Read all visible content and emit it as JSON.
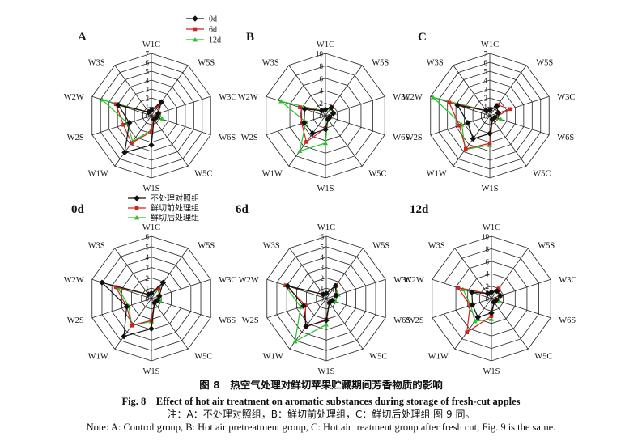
{
  "colors": {
    "s0": "#111111",
    "s1": "#d42020",
    "s2": "#27c227",
    "grid": "#222222"
  },
  "legend_top": {
    "entries": [
      "0d",
      "6d",
      "12d"
    ]
  },
  "legend_mid": {
    "entries": [
      "不处理对照组",
      "鲜切前处理组",
      "鲜切后处理组"
    ]
  },
  "captions": {
    "zh_title": "图 8　热空气处理对鲜切苹果贮藏期间芳香物质的影响",
    "en_title": "Fig. 8　Effect of hot air treatment on aromatic substances during storage of fresh-cut apples",
    "zh_note": "注：A：不处理对照组，B：鲜切前处理组，C：鲜切后处理组  图 9 同。",
    "en_note": "Note: A: Control group, B: Hot air pretreatment group, C: Hot air treatment group after fresh cut, Fig. 9 is the same."
  },
  "chart_data": [
    {
      "type": "radar",
      "panel_label": "A",
      "axes": [
        "W1C",
        "W5S",
        "W3C",
        "W6S",
        "W5C",
        "W1S",
        "W1W",
        "W2S",
        "W2W",
        "W3S"
      ],
      "rlim": [
        0,
        7
      ],
      "ticks": [
        "0",
        "1",
        "2",
        "3",
        "4",
        "5",
        "6",
        "7"
      ],
      "series_legend": "legend_top",
      "series": [
        {
          "values": [
            0.6,
            1.9,
            0.8,
            0.6,
            0.5,
            3.3,
            5.1,
            2.6,
            3.9,
            0.5
          ]
        },
        {
          "values": [
            0.6,
            1.4,
            0.9,
            0.5,
            0.4,
            1.8,
            3.8,
            3.3,
            4.2,
            0.5
          ]
        },
        {
          "values": [
            0.6,
            1.3,
            0.9,
            1.3,
            0.5,
            1.6,
            3.6,
            2.8,
            5.8,
            0.5
          ]
        }
      ]
    },
    {
      "type": "radar",
      "panel_label": "B",
      "axes": [
        "W1C",
        "W5S",
        "W3C",
        "W6S",
        "W5C",
        "W1S",
        "W1W",
        "W2S",
        "W2W",
        "W3S"
      ],
      "rlim": [
        0,
        10
      ],
      "ticks": [
        "0",
        "2",
        "4",
        "6",
        "8",
        "10"
      ],
      "series_legend": "legend_top",
      "series": [
        {
          "values": [
            1.0,
            1.6,
            1.3,
            0.7,
            0.7,
            2.2,
            3.5,
            3.6,
            3.5,
            1.0
          ]
        },
        {
          "values": [
            1.0,
            1.7,
            1.3,
            0.7,
            0.7,
            2.0,
            5.2,
            4.0,
            4.3,
            1.0
          ]
        },
        {
          "values": [
            1.0,
            1.4,
            1.5,
            0.8,
            0.7,
            4.4,
            7.0,
            3.3,
            7.5,
            1.0
          ]
        }
      ]
    },
    {
      "type": "radar",
      "panel_label": "C",
      "axes": [
        "W1C",
        "W5S",
        "W3C",
        "W6S",
        "W5C",
        "W1S",
        "W1W",
        "W2S",
        "W2W",
        "W3S"
      ],
      "rlim": [
        0,
        7
      ],
      "ticks": [
        "0",
        "1",
        "2",
        "3",
        "4",
        "5",
        "6",
        "7"
      ],
      "series_legend": "legend_top",
      "series": [
        {
          "values": [
            0.6,
            1.3,
            1.0,
            0.6,
            0.5,
            2.0,
            3.2,
            2.6,
            3.8,
            0.7
          ]
        },
        {
          "values": [
            0.6,
            1.5,
            2.4,
            0.6,
            0.5,
            3.1,
            4.6,
            3.6,
            4.8,
            0.7
          ]
        },
        {
          "values": [
            0.6,
            1.3,
            1.0,
            1.3,
            0.5,
            3.3,
            4.7,
            3.3,
            6.7,
            0.7
          ]
        }
      ]
    },
    {
      "type": "radar",
      "panel_label": "0d",
      "axes": [
        "W1C",
        "W5S",
        "W3C",
        "W6S",
        "W5C",
        "W1S",
        "W1W",
        "W2S",
        "W2W",
        "W3S"
      ],
      "rlim": [
        0,
        6
      ],
      "ticks": [
        "0",
        "1",
        "2",
        "3",
        "4",
        "5",
        "6"
      ],
      "series_legend": "legend_mid",
      "series": [
        {
          "values": [
            0.5,
            1.9,
            0.8,
            0.6,
            0.5,
            2.9,
            4.5,
            2.5,
            5.0,
            0.5
          ]
        },
        {
          "values": [
            0.5,
            1.2,
            0.8,
            0.5,
            0.5,
            2.1,
            3.2,
            2.5,
            3.6,
            0.5
          ]
        },
        {
          "values": [
            0.5,
            1.1,
            0.8,
            0.9,
            0.5,
            2.2,
            3.2,
            2.3,
            3.4,
            0.5
          ]
        }
      ]
    },
    {
      "type": "radar",
      "panel_label": "6d",
      "axes": [
        "W1C",
        "W5S",
        "W3C",
        "W6S",
        "W5C",
        "W1S",
        "W1W",
        "W2S",
        "W2W",
        "W3S"
      ],
      "rlim": [
        0,
        6
      ],
      "ticks": [
        "0",
        "1",
        "2",
        "3",
        "4",
        "5",
        "6"
      ],
      "series_legend": "legend_mid",
      "series": [
        {
          "values": [
            0.5,
            1.5,
            1.0,
            0.6,
            0.5,
            2.1,
            3.3,
            2.3,
            3.9,
            0.5
          ]
        },
        {
          "values": [
            0.5,
            1.6,
            1.0,
            0.6,
            0.5,
            2.0,
            3.4,
            2.1,
            4.1,
            0.5
          ]
        },
        {
          "values": [
            0.5,
            1.5,
            1.2,
            0.9,
            0.5,
            2.5,
            5.1,
            2.6,
            4.2,
            0.5
          ]
        }
      ]
    },
    {
      "type": "radar",
      "panel_label": "12d",
      "axes": [
        "W1C",
        "W5S",
        "W3C",
        "W6S",
        "W5C",
        "W1S",
        "W1W",
        "W2S",
        "W2W",
        "W3S"
      ],
      "rlim": [
        0,
        10
      ],
      "ticks": [
        "0",
        "2",
        "4",
        "6",
        "8",
        "10"
      ],
      "series_legend": "legend_mid",
      "series": [
        {
          "values": [
            1.0,
            1.5,
            1.5,
            0.8,
            0.7,
            2.3,
            3.7,
            3.2,
            3.3,
            1.0
          ]
        },
        {
          "values": [
            1.0,
            2.0,
            1.4,
            0.8,
            0.7,
            2.8,
            6.7,
            3.6,
            5.6,
            1.0
          ]
        },
        {
          "values": [
            1.0,
            1.4,
            1.5,
            1.2,
            0.7,
            3.3,
            4.5,
            3.5,
            4.8,
            1.0
          ]
        }
      ]
    }
  ]
}
